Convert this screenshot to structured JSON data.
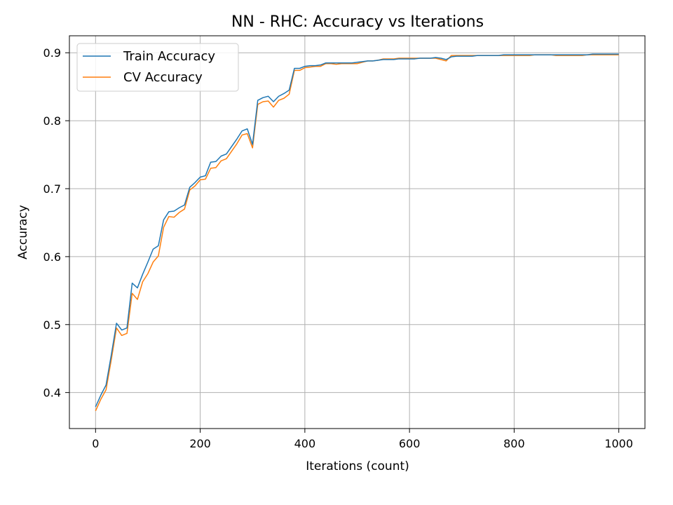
{
  "chart_data": {
    "type": "line",
    "title": "NN - RHC: Accuracy vs Iterations",
    "xlabel": "Iterations (count)",
    "ylabel": "Accuracy",
    "xlim": [
      -50,
      1050
    ],
    "ylim": [
      0.347,
      0.925
    ],
    "xticks": [
      0,
      200,
      400,
      600,
      800,
      1000
    ],
    "yticks": [
      0.4,
      0.5,
      0.6,
      0.7,
      0.8,
      0.9
    ],
    "xtick_labels": [
      "0",
      "200",
      "400",
      "600",
      "800",
      "1000"
    ],
    "ytick_labels": [
      "0.4",
      "0.5",
      "0.6",
      "0.7",
      "0.8",
      "0.9"
    ],
    "grid": true,
    "legend_position": "top-left",
    "x": [
      0,
      10,
      20,
      30,
      40,
      50,
      60,
      70,
      80,
      90,
      100,
      110,
      120,
      130,
      140,
      150,
      160,
      170,
      180,
      190,
      200,
      210,
      220,
      230,
      240,
      250,
      260,
      270,
      280,
      290,
      300,
      310,
      320,
      330,
      340,
      350,
      360,
      370,
      380,
      390,
      400,
      410,
      420,
      430,
      440,
      450,
      460,
      470,
      480,
      490,
      500,
      510,
      520,
      530,
      540,
      550,
      560,
      570,
      580,
      590,
      600,
      610,
      620,
      630,
      640,
      650,
      660,
      670,
      680,
      690,
      700,
      710,
      720,
      730,
      740,
      750,
      760,
      770,
      780,
      790,
      800,
      810,
      820,
      830,
      840,
      850,
      860,
      870,
      880,
      890,
      900,
      910,
      920,
      930,
      940,
      950,
      960,
      970,
      980,
      990,
      1000
    ],
    "series": [
      {
        "name": "Train Accuracy",
        "color": "#1f77b4",
        "values": [
          0.379,
          0.396,
          0.411,
          0.455,
          0.502,
          0.492,
          0.495,
          0.561,
          0.554,
          0.574,
          0.592,
          0.611,
          0.616,
          0.654,
          0.666,
          0.667,
          0.672,
          0.676,
          0.702,
          0.709,
          0.717,
          0.719,
          0.739,
          0.74,
          0.748,
          0.751,
          0.762,
          0.773,
          0.785,
          0.788,
          0.765,
          0.83,
          0.834,
          0.836,
          0.828,
          0.836,
          0.84,
          0.845,
          0.877,
          0.877,
          0.88,
          0.881,
          0.881,
          0.882,
          0.885,
          0.885,
          0.885,
          0.885,
          0.885,
          0.885,
          0.886,
          0.887,
          0.888,
          0.888,
          0.889,
          0.89,
          0.89,
          0.89,
          0.891,
          0.891,
          0.891,
          0.891,
          0.892,
          0.892,
          0.892,
          0.893,
          0.892,
          0.89,
          0.894,
          0.895,
          0.895,
          0.895,
          0.895,
          0.896,
          0.896,
          0.896,
          0.896,
          0.896,
          0.897,
          0.897,
          0.897,
          0.897,
          0.897,
          0.897,
          0.897,
          0.897,
          0.897,
          0.897,
          0.897,
          0.897,
          0.897,
          0.897,
          0.897,
          0.897,
          0.897,
          0.898,
          0.898,
          0.898,
          0.898,
          0.898,
          0.898
        ]
      },
      {
        "name": "CV Accuracy",
        "color": "#ff7f0e",
        "values": [
          0.373,
          0.39,
          0.404,
          0.448,
          0.495,
          0.484,
          0.487,
          0.546,
          0.537,
          0.563,
          0.575,
          0.592,
          0.601,
          0.643,
          0.659,
          0.658,
          0.665,
          0.67,
          0.698,
          0.704,
          0.713,
          0.714,
          0.73,
          0.731,
          0.741,
          0.744,
          0.755,
          0.766,
          0.779,
          0.781,
          0.76,
          0.824,
          0.828,
          0.829,
          0.82,
          0.83,
          0.833,
          0.839,
          0.874,
          0.874,
          0.878,
          0.879,
          0.88,
          0.88,
          0.884,
          0.884,
          0.883,
          0.884,
          0.884,
          0.884,
          0.884,
          0.886,
          0.888,
          0.888,
          0.889,
          0.891,
          0.891,
          0.891,
          0.892,
          0.892,
          0.892,
          0.892,
          0.892,
          0.892,
          0.892,
          0.892,
          0.89,
          0.888,
          0.896,
          0.896,
          0.896,
          0.896,
          0.896,
          0.896,
          0.896,
          0.896,
          0.896,
          0.896,
          0.896,
          0.896,
          0.896,
          0.896,
          0.896,
          0.896,
          0.897,
          0.897,
          0.897,
          0.897,
          0.896,
          0.896,
          0.896,
          0.896,
          0.896,
          0.896,
          0.897,
          0.897,
          0.897,
          0.897,
          0.897,
          0.897,
          0.897
        ]
      }
    ]
  }
}
